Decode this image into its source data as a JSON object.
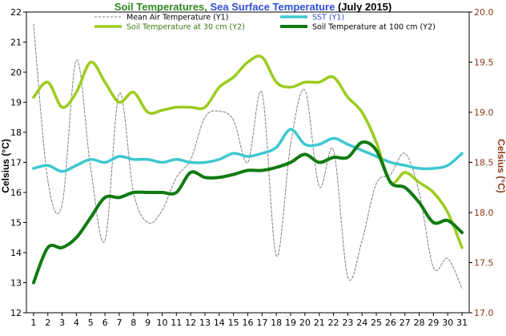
{
  "chart_data": {
    "type": "line",
    "title": {
      "part1": "Soil Temperatures",
      "sep": ", ",
      "part2": "Sea Surface Temperature",
      "part3": " (July 2015)",
      "color1": "#2e8b1e",
      "color2": "#2f4fd9",
      "color3": "#000000"
    },
    "ylabel_left": "Celsius (°C)",
    "ylabel_right": "Celsius (°C)",
    "y1lim": [
      12,
      22
    ],
    "y1_ticks": [
      12,
      13,
      14,
      15,
      16,
      17,
      18,
      19,
      20,
      21,
      22
    ],
    "y2lim": [
      17.0,
      20.0
    ],
    "y2_ticks": [
      "17.0",
      "17.5",
      "18.0",
      "18.5",
      "19.0",
      "19.5",
      "20.0"
    ],
    "x": [
      1,
      2,
      3,
      4,
      5,
      6,
      7,
      8,
      9,
      10,
      11,
      12,
      13,
      14,
      15,
      16,
      17,
      18,
      19,
      20,
      21,
      22,
      23,
      24,
      25,
      26,
      27,
      28,
      29,
      30,
      31
    ],
    "x_tick_labels": [
      "1",
      "2",
      "3",
      "4",
      "5",
      "6",
      "7",
      "8",
      "9",
      "10",
      "11",
      "12",
      "13",
      "14",
      "15",
      "16",
      "17",
      "18",
      "19",
      "20",
      "21",
      "22",
      "23",
      "24",
      "25",
      "26",
      "27",
      "28",
      "29",
      "30",
      "31"
    ],
    "grid": false,
    "series": [
      {
        "name": "Mean Air Temperature (Y1)",
        "axis": "y1",
        "color": "#808080",
        "style": "dashed",
        "values": [
          21.6,
          16.4,
          15.6,
          20.4,
          16.8,
          14.4,
          19.3,
          16.0,
          15.0,
          15.4,
          16.5,
          17.1,
          18.5,
          18.7,
          18.4,
          17.0,
          19.3,
          13.9,
          17.6,
          19.4,
          16.2,
          17.4,
          13.2,
          14.4,
          16.3,
          16.6,
          17.3,
          16.0,
          13.5,
          13.8,
          12.8
        ]
      },
      {
        "name": "SST (Y1)",
        "axis": "y1",
        "color": "#3ec8d0",
        "style": "solid",
        "values": [
          16.8,
          16.9,
          16.7,
          16.9,
          17.1,
          17.0,
          17.2,
          17.1,
          17.1,
          17.0,
          17.1,
          17.0,
          17.0,
          17.1,
          17.3,
          17.2,
          17.3,
          17.5,
          18.1,
          17.6,
          17.6,
          17.8,
          17.6,
          17.4,
          17.2,
          17.0,
          16.9,
          16.8,
          16.8,
          16.9,
          17.3
        ]
      },
      {
        "name": "Soil Temperature at 30 cm (Y2)",
        "axis": "y2",
        "color": "#9ccc1e",
        "style": "solid",
        "values": [
          19.15,
          19.3,
          19.05,
          19.2,
          19.5,
          19.3,
          19.1,
          19.2,
          19.0,
          19.02,
          19.05,
          19.05,
          19.05,
          19.25,
          19.35,
          19.5,
          19.55,
          19.3,
          19.25,
          19.3,
          19.3,
          19.35,
          19.15,
          19.0,
          18.7,
          18.3,
          18.4,
          18.3,
          18.2,
          18.0,
          17.65
        ]
      },
      {
        "name": "Soil Temperature at 100 cm (Y2)",
        "axis": "y2",
        "color": "#0f7a10",
        "style": "solid",
        "values": [
          17.3,
          17.65,
          17.65,
          17.75,
          17.95,
          18.15,
          18.15,
          18.2,
          18.2,
          18.2,
          18.2,
          18.4,
          18.35,
          18.35,
          18.38,
          18.42,
          18.42,
          18.45,
          18.5,
          18.58,
          18.5,
          18.55,
          18.55,
          18.7,
          18.62,
          18.3,
          18.25,
          18.1,
          17.9,
          17.92,
          17.8
        ]
      }
    ],
    "legend": [
      {
        "label": "Mean Air Temperature (Y1)",
        "color": "#808080",
        "text_color": "#000000",
        "style": "dashed"
      },
      {
        "label": "SST (Y1)",
        "color": "#3ec8d0",
        "text_color": "#2f4fd9",
        "style": "solid"
      },
      {
        "label": "Soil Temperature at 30 cm (Y2)",
        "color": "#9ccc1e",
        "text_color": "#3a7a10",
        "style": "solid"
      },
      {
        "label": "Soil Temperature at 100 cm (Y2)",
        "color": "#0f7a10",
        "text_color": "#000000",
        "style": "solid"
      }
    ],
    "legend_position": "top-center"
  }
}
